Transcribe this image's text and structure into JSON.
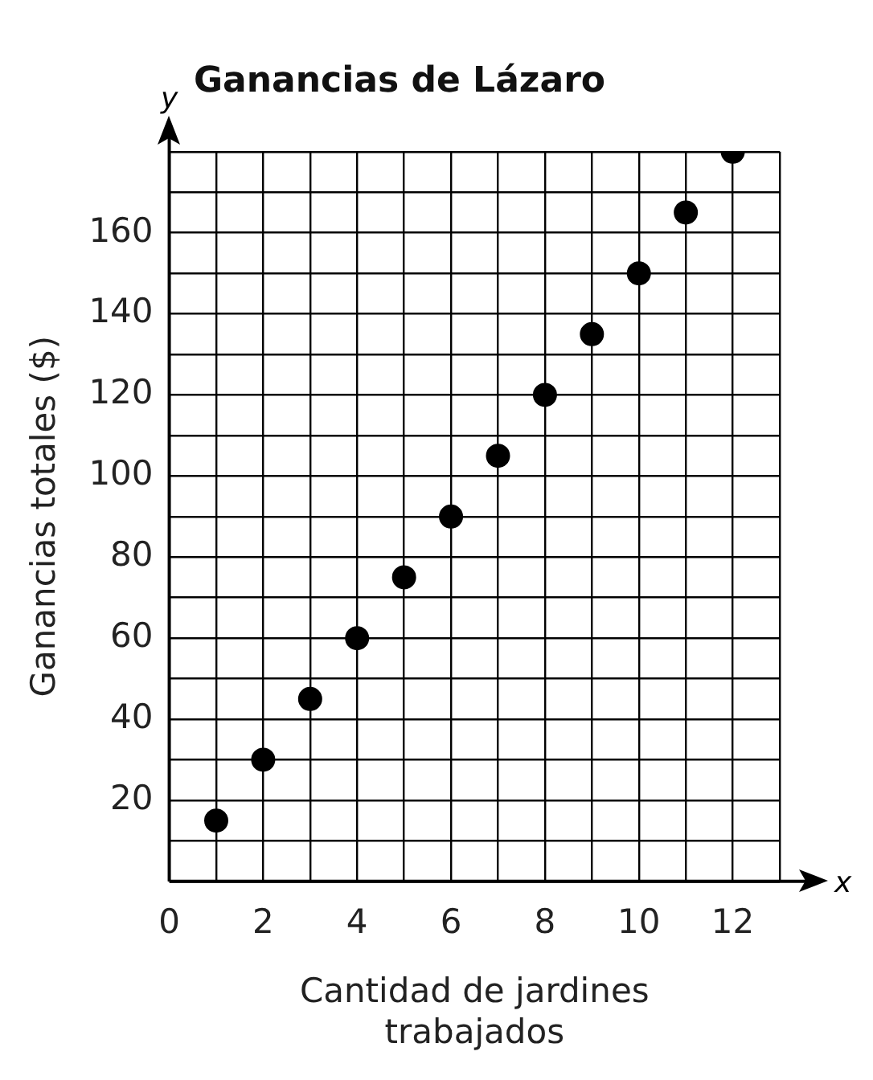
{
  "chart_data": {
    "type": "scatter",
    "title": "Ganancias de Lázaro",
    "xlabel": "Cantidad de jardines trabajados",
    "ylabel": "Ganancias totales ($)",
    "annotations": [
      "x",
      "y"
    ],
    "x": [
      1,
      2,
      3,
      4,
      5,
      6,
      7,
      8,
      9,
      10,
      11,
      12
    ],
    "series": [
      {
        "color": "#000000",
        "values": [
          15,
          30,
          45,
          60,
          75,
          90,
          105,
          120,
          135,
          150,
          165,
          180
        ]
      }
    ],
    "xlim": [
      0,
      13
    ],
    "ylim": [
      0,
      180
    ],
    "xticks": [
      {
        "value": 0,
        "label": "0"
      },
      {
        "value": 1,
        "label": null
      },
      2,
      {
        "value": 3,
        "label": null
      },
      4,
      {
        "value": 5,
        "label": null
      },
      6,
      {
        "value": 7,
        "label": null
      },
      8,
      {
        "value": 9,
        "label": null
      },
      10,
      {
        "value": 11,
        "label": null
      },
      12,
      {
        "value": 13,
        "label": null
      }
    ],
    "yticks": [
      {
        "value": 0,
        "label": null
      },
      {
        "value": 10,
        "label": null
      },
      20,
      {
        "value": 30,
        "label": null
      },
      40,
      {
        "value": 50,
        "label": null
      },
      60,
      {
        "value": 70,
        "label": null
      },
      80,
      {
        "value": 90,
        "label": null
      },
      100,
      {
        "value": 110,
        "label": null
      },
      120,
      {
        "value": 130,
        "label": null
      },
      140,
      {
        "value": 150,
        "label": null
      },
      160,
      {
        "value": 170,
        "label": null
      },
      {
        "value": 180,
        "label": null
      }
    ],
    "grid": true,
    "legend": false,
    "marker": "circle"
  }
}
